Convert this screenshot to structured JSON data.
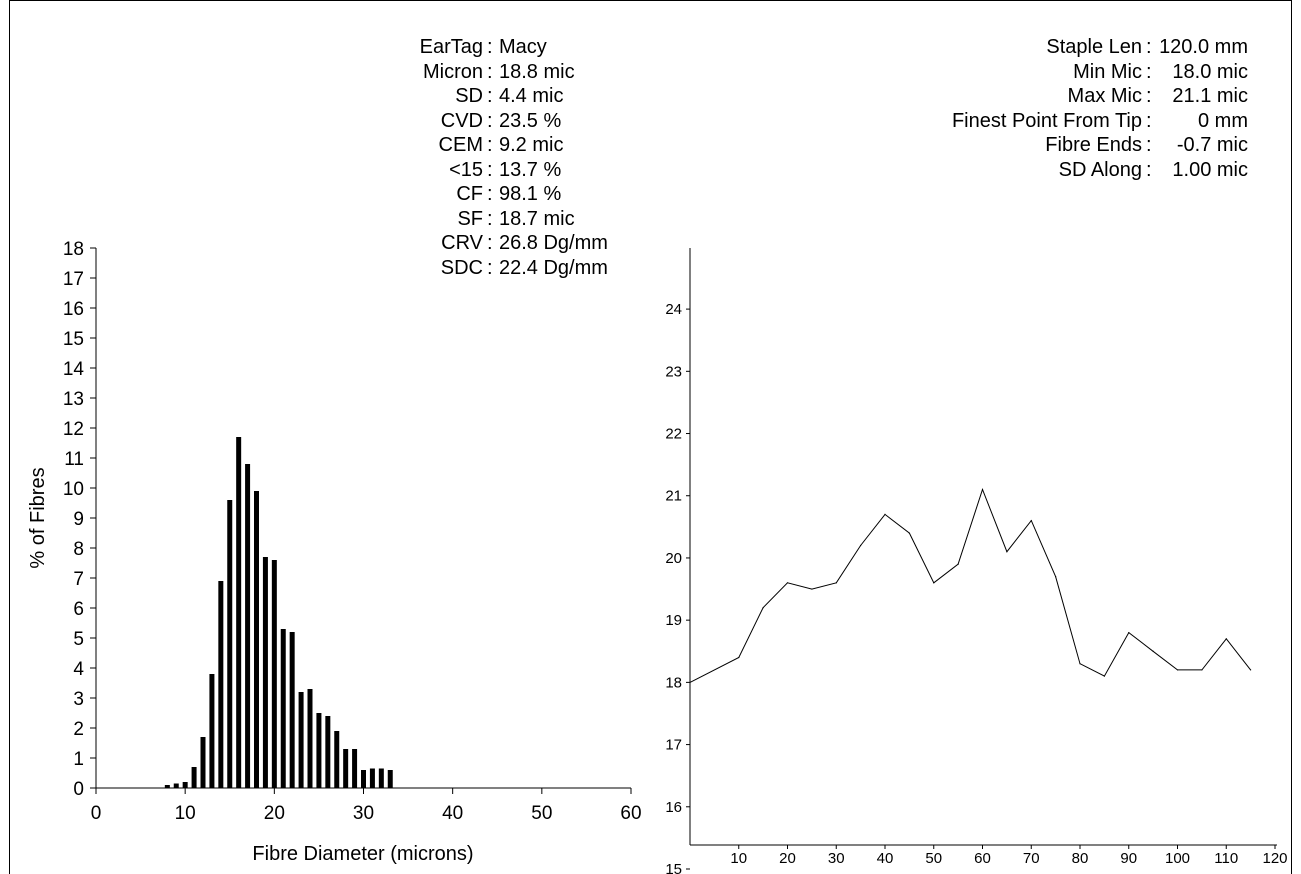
{
  "stats_left": [
    {
      "label": "EarTag",
      "value": "Macy"
    },
    {
      "label": "Micron",
      "value": "18.8 mic"
    },
    {
      "label": "SD",
      "value": "4.4 mic"
    },
    {
      "label": "CVD",
      "value": "23.5 %"
    },
    {
      "label": "CEM",
      "value": "9.2 mic"
    },
    {
      "label": "<15",
      "value": "13.7 %"
    },
    {
      "label": "CF",
      "value": "98.1 %"
    },
    {
      "label": "SF",
      "value": "18.7 mic"
    },
    {
      "label": "CRV",
      "value": "26.8 Dg/mm"
    },
    {
      "label": "SDC",
      "value": "22.4 Dg/mm"
    }
  ],
  "stats_right": [
    {
      "label": "Staple Len",
      "value": "120.0 mm"
    },
    {
      "label": "Min Mic",
      "value": "18.0 mic"
    },
    {
      "label": "Max Mic",
      "value": "21.1 mic"
    },
    {
      "label": "Finest Point From Tip",
      "value": "0 mm"
    },
    {
      "label": "Fibre Ends",
      "value": "-0.7 mic"
    },
    {
      "label": "SD Along",
      "value": "1.00 mic"
    }
  ],
  "chart_data": [
    {
      "type": "bar",
      "xlabel": "Fibre Diameter (microns)",
      "ylabel": "% of Fibres",
      "xlim": [
        0,
        60
      ],
      "ylim": [
        0,
        18
      ],
      "xticks": [
        0,
        10,
        20,
        30,
        40,
        50,
        60
      ],
      "yticks": [
        0,
        1,
        2,
        3,
        4,
        5,
        6,
        7,
        8,
        9,
        10,
        11,
        12,
        13,
        14,
        15,
        16,
        17,
        18
      ],
      "x": [
        8,
        9,
        10,
        11,
        12,
        13,
        14,
        15,
        16,
        17,
        18,
        19,
        20,
        21,
        22,
        23,
        24,
        25,
        26,
        27,
        28,
        29,
        30,
        31,
        32,
        33
      ],
      "values": [
        0.1,
        0.15,
        0.2,
        0.7,
        1.7,
        3.8,
        6.9,
        9.6,
        11.7,
        10.8,
        9.9,
        7.7,
        7.6,
        5.3,
        5.2,
        3.2,
        3.3,
        2.5,
        2.4,
        1.9,
        1.3,
        1.3,
        0.6,
        0.65,
        0.65,
        0.6
      ],
      "grid": false
    },
    {
      "type": "line",
      "xlim": [
        0,
        120
      ],
      "ylim": [
        15,
        24.5
      ],
      "xticks": [
        10,
        20,
        30,
        40,
        50,
        60,
        70,
        80,
        90,
        100,
        110,
        120
      ],
      "yticks": [
        15,
        16,
        17,
        18,
        19,
        20,
        21,
        22,
        23,
        24
      ],
      "x": [
        0,
        10,
        15,
        20,
        25,
        30,
        35,
        40,
        45,
        50,
        55,
        60,
        65,
        70,
        75,
        80,
        85,
        90,
        95,
        100,
        105,
        110,
        115
      ],
      "values": [
        18.0,
        18.4,
        19.2,
        19.6,
        19.5,
        19.6,
        20.2,
        20.7,
        20.4,
        19.6,
        19.9,
        21.1,
        20.1,
        20.6,
        19.7,
        18.3,
        18.1,
        18.8,
        18.5,
        18.2,
        18.2,
        18.7,
        18.2
      ],
      "grid": false
    }
  ]
}
